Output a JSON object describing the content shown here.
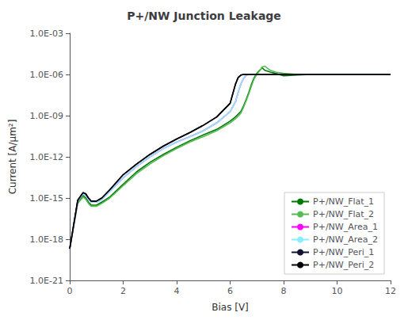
{
  "chart_data": {
    "type": "line",
    "title": "P+/NW Junction Leakage",
    "xlabel": "Bias [V]",
    "ylabel": "Current [A/μm²]",
    "log": "y",
    "xlim": [
      0,
      12
    ],
    "xticks": [
      0,
      2,
      4,
      6,
      8,
      10,
      12
    ],
    "ylim": [
      1e-21,
      0.001
    ],
    "yticks": [
      {
        "value": 1e-21,
        "label": "1.0E-21"
      },
      {
        "value": 1e-18,
        "label": "1.0E-18"
      },
      {
        "value": 1e-15,
        "label": "1.0E-15"
      },
      {
        "value": 1e-12,
        "label": "1.0E-12"
      },
      {
        "value": 1e-09,
        "label": "1.0E-09"
      },
      {
        "value": 1e-06,
        "label": "1.0E-06"
      },
      {
        "value": 0.001,
        "label": "1.0E-03"
      }
    ],
    "grid": false,
    "legend": "lower right",
    "series": [
      {
        "name": "P+/NW_Flat_1",
        "color": "#007700",
        "x": [
          0.0,
          0.3,
          0.5,
          0.6,
          0.7,
          0.8,
          1.0,
          1.2,
          1.5,
          2.0,
          2.5,
          3.0,
          3.5,
          4.0,
          4.5,
          5.0,
          5.5,
          6.0,
          6.2,
          6.4,
          6.5,
          6.6,
          6.7,
          6.8,
          6.9,
          7.0,
          7.1,
          7.2,
          7.3,
          7.5,
          7.7,
          8.0,
          8.5,
          9.0,
          10.0,
          11.0,
          12.0
        ],
        "values": [
          2e-19,
          5e-16,
          1.5e-15,
          1e-15,
          5e-16,
          3e-16,
          3e-16,
          5e-16,
          1.2e-15,
          1e-14,
          8e-14,
          4e-13,
          1.5e-12,
          5e-12,
          1.5e-11,
          4e-11,
          1e-10,
          4e-10,
          8e-10,
          2e-09,
          5e-09,
          1.5e-08,
          5e-08,
          2e-07,
          6e-07,
          1.2e-06,
          2e-06,
          3e-06,
          2e-06,
          1.5e-06,
          1.2e-06,
          8e-07,
          9e-07,
          1e-06,
          1e-06,
          1e-06,
          1e-06
        ]
      },
      {
        "name": "P+/NW_Flat_2",
        "color": "#55bb55",
        "x": [
          0.0,
          0.3,
          0.5,
          0.6,
          0.7,
          0.8,
          1.0,
          1.2,
          1.5,
          2.0,
          2.5,
          3.0,
          3.5,
          4.0,
          4.5,
          5.0,
          5.5,
          6.0,
          6.2,
          6.4,
          6.5,
          6.6,
          6.7,
          6.8,
          6.9,
          7.0,
          7.1,
          7.2,
          7.3,
          7.5,
          7.7,
          8.0,
          8.5,
          9.0,
          10.0,
          11.0,
          12.0
        ],
        "values": [
          2e-19,
          4e-16,
          1.2e-15,
          8e-16,
          4e-16,
          2.5e-16,
          2.5e-16,
          4e-16,
          1e-15,
          8e-15,
          6e-14,
          3e-13,
          1.2e-12,
          4e-12,
          1.2e-11,
          3e-11,
          8e-11,
          3e-10,
          6e-10,
          1.5e-09,
          4e-09,
          1.2e-08,
          4e-08,
          1.5e-07,
          5e-07,
          1e-06,
          1.8e-06,
          3.5e-06,
          4e-06,
          2e-06,
          1.5e-06,
          1.2e-06,
          1e-06,
          1e-06,
          1e-06,
          1e-06,
          1e-06
        ]
      },
      {
        "name": "P+/NW_Area_1",
        "color": "#ff00ff",
        "x": [
          0.0,
          0.3,
          0.5,
          0.6,
          0.7,
          0.8,
          1.0,
          1.2,
          1.5,
          2.0,
          2.5,
          3.0,
          3.5,
          4.0,
          4.5,
          5.0,
          5.5,
          6.0,
          6.2,
          6.3,
          6.4,
          6.5,
          6.6,
          6.7,
          7.0,
          8.0,
          9.0,
          10.0,
          12.0
        ],
        "values": [
          2e-19,
          6e-16,
          2e-15,
          1.5e-15,
          8e-16,
          5e-16,
          5e-16,
          8e-16,
          3e-15,
          3e-14,
          2e-13,
          1e-12,
          4e-12,
          1.2e-11,
          3e-11,
          8e-11,
          3e-10,
          2e-09,
          1e-08,
          5e-08,
          2e-07,
          5e-07,
          9e-07,
          1e-06,
          1e-06,
          1e-06,
          1e-06,
          1e-06,
          1e-06
        ]
      },
      {
        "name": "P+/NW_Area_2",
        "color": "#88eeff",
        "x": [
          0.0,
          0.3,
          0.5,
          0.6,
          0.7,
          0.8,
          1.0,
          1.2,
          1.5,
          2.0,
          2.5,
          3.0,
          3.5,
          4.0,
          4.5,
          5.0,
          5.5,
          6.0,
          6.2,
          6.3,
          6.4,
          6.5,
          6.6,
          6.7,
          7.0,
          8.0,
          9.0,
          10.0,
          12.0
        ],
        "values": [
          2e-19,
          6e-16,
          2e-15,
          1.5e-15,
          8e-16,
          5e-16,
          5e-16,
          8e-16,
          3e-15,
          3e-14,
          2e-13,
          1e-12,
          4e-12,
          1.2e-11,
          3e-11,
          8e-11,
          3e-10,
          2e-09,
          1e-08,
          5e-08,
          2e-07,
          5e-07,
          9e-07,
          1e-06,
          1e-06,
          1e-06,
          1e-06,
          1e-06,
          1e-06
        ]
      },
      {
        "name": "P+/NW_Peri_1",
        "color": "#111133",
        "x": [
          0.0,
          0.3,
          0.5,
          0.6,
          0.7,
          0.8,
          1.0,
          1.2,
          1.5,
          2.0,
          2.5,
          3.0,
          3.5,
          4.0,
          4.5,
          5.0,
          5.5,
          6.0,
          6.1,
          6.2,
          6.3,
          6.4,
          6.5,
          7.0,
          8.0,
          9.0,
          10.0,
          12.0
        ],
        "values": [
          2e-19,
          7e-16,
          2.5e-15,
          2e-15,
          1e-15,
          6e-16,
          6e-16,
          1e-15,
          4e-15,
          5e-14,
          3e-13,
          1.5e-12,
          6e-12,
          2e-11,
          6e-11,
          2e-10,
          8e-10,
          8e-09,
          4e-08,
          2e-07,
          6e-07,
          9e-07,
          1e-06,
          1e-06,
          1e-06,
          1e-06,
          1e-06,
          1e-06
        ]
      },
      {
        "name": "P+/NW_Peri_2",
        "color": "#000000",
        "x": [
          0.0,
          0.3,
          0.5,
          0.6,
          0.7,
          0.8,
          1.0,
          1.2,
          1.5,
          2.0,
          2.5,
          3.0,
          3.5,
          4.0,
          4.5,
          5.0,
          5.5,
          6.0,
          6.1,
          6.2,
          6.3,
          6.4,
          6.5,
          7.0,
          8.0,
          9.0,
          10.0,
          12.0
        ],
        "values": [
          2e-19,
          7e-16,
          2.5e-15,
          2e-15,
          1e-15,
          6e-16,
          6e-16,
          1e-15,
          4e-15,
          5e-14,
          3e-13,
          1.5e-12,
          6e-12,
          2e-11,
          6e-11,
          2e-10,
          8e-10,
          8e-09,
          4e-08,
          2e-07,
          6e-07,
          9e-07,
          1e-06,
          1e-06,
          1e-06,
          1e-06,
          1e-06,
          1e-06
        ]
      }
    ]
  }
}
